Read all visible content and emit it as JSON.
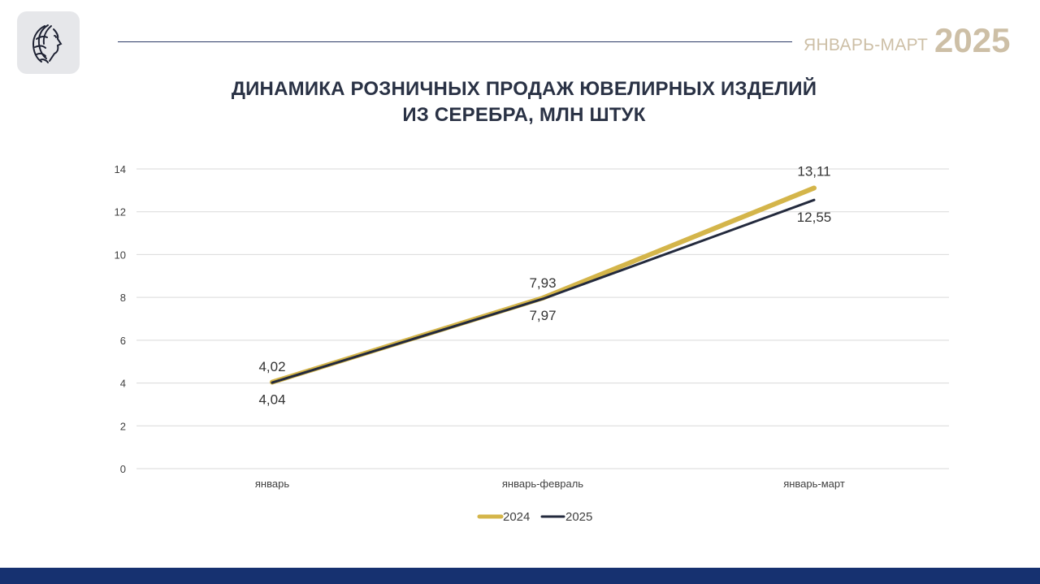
{
  "header": {
    "period": "ЯНВАРЬ-МАРТ",
    "year": "2025",
    "logo_icon": "woman-profile-logo-icon"
  },
  "chart_data": {
    "type": "line",
    "title": [
      "ДИНАМИКА РОЗНИЧНЫХ ПРОДАЖ ЮВЕЛИРНЫХ ИЗДЕЛИЙ",
      "ИЗ СЕРЕБРА, МЛН ШТУК"
    ],
    "categories": [
      "январь",
      "январь-февраль",
      "январь-март"
    ],
    "ylim": [
      0,
      14
    ],
    "yticks": [
      "0",
      "2",
      "4",
      "6",
      "8",
      "10",
      "12",
      "14"
    ],
    "grid": true,
    "legend_position": "bottom",
    "series": [
      {
        "name": "2024",
        "values": [
          4.04,
          7.97,
          13.11
        ],
        "labels": [
          "4,04",
          "7,97",
          "13,11"
        ],
        "color": "#d4b54a"
      },
      {
        "name": "2025",
        "values": [
          4.02,
          7.93,
          12.55
        ],
        "labels": [
          "4,02",
          "7,93",
          "12,55"
        ],
        "color": "#232a3d"
      }
    ]
  },
  "colors": {
    "accent_gold": "#d4b54a",
    "dark_navy": "#232a3d",
    "footer_blue": "#163170",
    "period_beige": "#cdbfa6"
  }
}
